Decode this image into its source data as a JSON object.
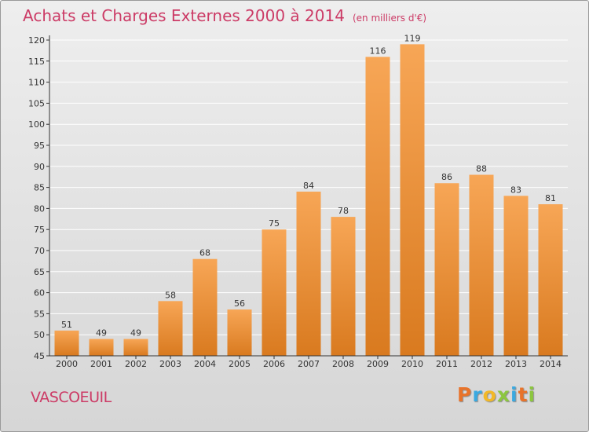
{
  "header": {
    "title": "Achats et Charges Externes 2000 à 2014",
    "subtitle": "(en milliers d'€)"
  },
  "footer": {
    "commune": "VASCOEUIL",
    "brand": "Proxiti",
    "brand_letter_colors": [
      "#e8732a",
      "#3aa9e0",
      "#f2b827",
      "#8cc63f",
      "#3aa9e0",
      "#e8732a",
      "#8cc63f"
    ]
  },
  "colors": {
    "bar_top": "#f7a656",
    "bar_bottom": "#d97a1f",
    "grid": "#ffffff",
    "title": "#cc3b66"
  },
  "chart_data": {
    "type": "bar",
    "categories": [
      "2000",
      "2001",
      "2002",
      "2003",
      "2004",
      "2005",
      "2006",
      "2007",
      "2008",
      "2009",
      "2010",
      "2011",
      "2012",
      "2013",
      "2014"
    ],
    "values": [
      51,
      49,
      49,
      58,
      68,
      56,
      75,
      84,
      78,
      116,
      119,
      86,
      88,
      83,
      81
    ],
    "ylim": [
      45,
      120
    ],
    "yticks": [
      45,
      50,
      55,
      60,
      65,
      70,
      75,
      80,
      85,
      90,
      95,
      100,
      105,
      110,
      115,
      120
    ],
    "grid": true,
    "xlabel": "",
    "ylabel": ""
  }
}
